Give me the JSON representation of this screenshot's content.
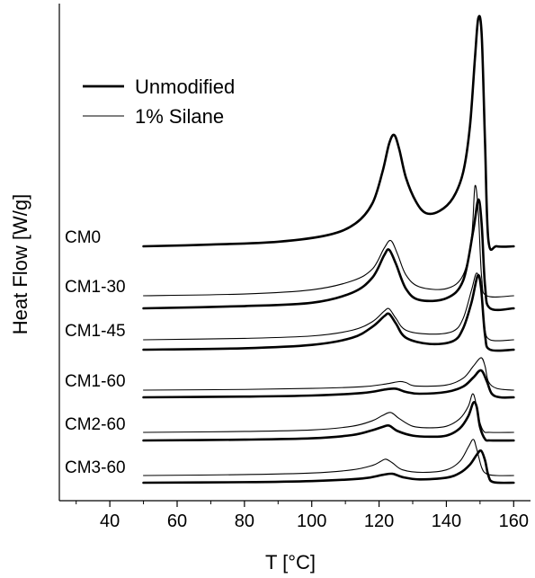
{
  "chart_data": {
    "type": "line",
    "xlabel": "T [°C]",
    "ylabel": "Heat Flow [W/g]",
    "xlim": [
      25,
      165
    ],
    "xticks": [
      40,
      60,
      80,
      100,
      120,
      140,
      160
    ],
    "y_ticks_shown": false,
    "grid": false,
    "legend": {
      "placement": "top-left",
      "entries": [
        {
          "name": "Unmodified",
          "style": "thick"
        },
        {
          "name": "1% Silane",
          "style": "thin"
        }
      ]
    },
    "samples": [
      "CM0",
      "CM1-30",
      "CM1-45",
      "CM1-60",
      "CM2-60",
      "CM3-60"
    ],
    "curves": [
      {
        "sample": "CM0",
        "series": "Unmodified",
        "points": [
          [
            50,
            0.0
          ],
          [
            70,
            0.03
          ],
          [
            90,
            0.08
          ],
          [
            105,
            0.2
          ],
          [
            113,
            0.4
          ],
          [
            118,
            0.75
          ],
          [
            121,
            1.3
          ],
          [
            123,
            1.8
          ],
          [
            124.5,
            1.95
          ],
          [
            126,
            1.7
          ],
          [
            128,
            1.2
          ],
          [
            131,
            0.78
          ],
          [
            134,
            0.58
          ],
          [
            138,
            0.62
          ],
          [
            142,
            0.85
          ],
          [
            145,
            1.3
          ],
          [
            147,
            2.1
          ],
          [
            148.5,
            3.3
          ],
          [
            149.5,
            4.0
          ],
          [
            150.5,
            3.7
          ],
          [
            151.5,
            1.8
          ],
          [
            152.5,
            0.1
          ],
          [
            155,
            0.0
          ],
          [
            160,
            0.0
          ]
        ]
      },
      {
        "sample": "CM1-30",
        "series": "1% Silane",
        "points": [
          [
            50,
            0.0
          ],
          [
            80,
            0.03
          ],
          [
            100,
            0.1
          ],
          [
            112,
            0.25
          ],
          [
            118,
            0.45
          ],
          [
            121.5,
            0.8
          ],
          [
            123.5,
            0.93
          ],
          [
            125.5,
            0.7
          ],
          [
            128,
            0.35
          ],
          [
            132,
            0.15
          ],
          [
            140,
            0.12
          ],
          [
            145,
            0.35
          ],
          [
            147.5,
            1.0
          ],
          [
            148.5,
            1.85
          ],
          [
            149.5,
            1.4
          ],
          [
            150.5,
            0.3
          ],
          [
            152,
            0.0
          ],
          [
            160,
            0.0
          ]
        ]
      },
      {
        "sample": "CM1-30",
        "series": "Unmodified",
        "points": [
          [
            50,
            0.0
          ],
          [
            80,
            0.04
          ],
          [
            100,
            0.1
          ],
          [
            112,
            0.28
          ],
          [
            118,
            0.55
          ],
          [
            121.5,
            0.95
          ],
          [
            123,
            1.05
          ],
          [
            125,
            0.8
          ],
          [
            128,
            0.35
          ],
          [
            132,
            0.15
          ],
          [
            140,
            0.18
          ],
          [
            145,
            0.5
          ],
          [
            148,
            1.4
          ],
          [
            149.5,
            1.95
          ],
          [
            150.5,
            1.5
          ],
          [
            151.5,
            0.4
          ],
          [
            153,
            0.0
          ],
          [
            160,
            0.0
          ]
        ]
      },
      {
        "sample": "CM1-45",
        "series": "1% Silane",
        "points": [
          [
            50,
            0.0
          ],
          [
            80,
            0.03
          ],
          [
            100,
            0.08
          ],
          [
            112,
            0.2
          ],
          [
            118,
            0.38
          ],
          [
            121.5,
            0.6
          ],
          [
            123,
            0.65
          ],
          [
            125,
            0.45
          ],
          [
            128,
            0.2
          ],
          [
            135,
            0.12
          ],
          [
            142,
            0.18
          ],
          [
            145,
            0.45
          ],
          [
            147.5,
            1.05
          ],
          [
            149,
            1.4
          ],
          [
            150.3,
            1.1
          ],
          [
            151.3,
            0.3
          ],
          [
            153,
            0.0
          ],
          [
            160,
            0.0
          ]
        ]
      },
      {
        "sample": "CM1-45",
        "series": "Unmodified",
        "points": [
          [
            50,
            0.0
          ],
          [
            80,
            0.03
          ],
          [
            100,
            0.1
          ],
          [
            112,
            0.25
          ],
          [
            118,
            0.48
          ],
          [
            121.5,
            0.7
          ],
          [
            123,
            0.75
          ],
          [
            125,
            0.55
          ],
          [
            128,
            0.25
          ],
          [
            135,
            0.12
          ],
          [
            142,
            0.18
          ],
          [
            145,
            0.45
          ],
          [
            147.5,
            1.0
          ],
          [
            149.3,
            1.55
          ],
          [
            150.3,
            1.3
          ],
          [
            151.5,
            0.3
          ],
          [
            153,
            0.0
          ],
          [
            160,
            0.0
          ]
        ]
      },
      {
        "sample": "CM1-60",
        "series": "1% Silane",
        "points": [
          [
            50,
            0.0
          ],
          [
            80,
            0.02
          ],
          [
            100,
            0.05
          ],
          [
            115,
            0.1
          ],
          [
            122,
            0.18
          ],
          [
            126,
            0.25
          ],
          [
            128,
            0.22
          ],
          [
            131,
            0.12
          ],
          [
            140,
            0.15
          ],
          [
            145,
            0.35
          ],
          [
            148,
            0.7
          ],
          [
            150.3,
            0.95
          ],
          [
            151.5,
            0.7
          ],
          [
            152.5,
            0.25
          ],
          [
            155,
            0.05
          ],
          [
            160,
            0.0
          ]
        ]
      },
      {
        "sample": "CM1-60",
        "series": "Unmodified",
        "points": [
          [
            50,
            0.0
          ],
          [
            80,
            0.02
          ],
          [
            100,
            0.05
          ],
          [
            115,
            0.12
          ],
          [
            122,
            0.22
          ],
          [
            125,
            0.24
          ],
          [
            128,
            0.15
          ],
          [
            132,
            0.1
          ],
          [
            140,
            0.15
          ],
          [
            145,
            0.3
          ],
          [
            148,
            0.55
          ],
          [
            150.3,
            0.75
          ],
          [
            152,
            0.45
          ],
          [
            153.5,
            0.1
          ],
          [
            156,
            0.0
          ],
          [
            160,
            0.0
          ]
        ]
      },
      {
        "sample": "CM2-60",
        "series": "1% Silane",
        "points": [
          [
            50,
            0.0
          ],
          [
            80,
            0.03
          ],
          [
            100,
            0.08
          ],
          [
            112,
            0.2
          ],
          [
            118,
            0.38
          ],
          [
            121,
            0.55
          ],
          [
            123.5,
            0.65
          ],
          [
            126,
            0.45
          ],
          [
            130,
            0.2
          ],
          [
            135,
            0.15
          ],
          [
            140,
            0.2
          ],
          [
            144,
            0.45
          ],
          [
            146.5,
            0.85
          ],
          [
            147.7,
            1.25
          ],
          [
            148.5,
            1.1
          ],
          [
            149.5,
            0.5
          ],
          [
            151,
            0.05
          ],
          [
            153,
            0.0
          ],
          [
            160,
            0.0
          ]
        ]
      },
      {
        "sample": "CM2-60",
        "series": "Unmodified",
        "points": [
          [
            50,
            0.0
          ],
          [
            80,
            0.03
          ],
          [
            100,
            0.08
          ],
          [
            112,
            0.2
          ],
          [
            118,
            0.38
          ],
          [
            121,
            0.5
          ],
          [
            123,
            0.55
          ],
          [
            125.5,
            0.35
          ],
          [
            130,
            0.18
          ],
          [
            135,
            0.14
          ],
          [
            140,
            0.18
          ],
          [
            144,
            0.45
          ],
          [
            146.5,
            0.9
          ],
          [
            148,
            1.4
          ],
          [
            149,
            1.25
          ],
          [
            150,
            0.5
          ],
          [
            151.5,
            0.05
          ],
          [
            153,
            0.0
          ],
          [
            160,
            0.0
          ]
        ]
      },
      {
        "sample": "CM3-60",
        "series": "1% Silane",
        "points": [
          [
            50,
            0.0
          ],
          [
            80,
            0.03
          ],
          [
            100,
            0.08
          ],
          [
            112,
            0.18
          ],
          [
            118,
            0.32
          ],
          [
            120.5,
            0.45
          ],
          [
            122,
            0.52
          ],
          [
            124,
            0.4
          ],
          [
            127,
            0.18
          ],
          [
            133,
            0.1
          ],
          [
            140,
            0.18
          ],
          [
            144,
            0.45
          ],
          [
            146.5,
            0.9
          ],
          [
            148,
            1.15
          ],
          [
            149,
            0.85
          ],
          [
            150.5,
            0.25
          ],
          [
            152,
            0.05
          ],
          [
            155,
            0.0
          ],
          [
            160,
            0.0
          ]
        ]
      },
      {
        "sample": "CM3-60",
        "series": "Unmodified",
        "points": [
          [
            50,
            0.0
          ],
          [
            80,
            0.02
          ],
          [
            100,
            0.06
          ],
          [
            115,
            0.15
          ],
          [
            121,
            0.28
          ],
          [
            124,
            0.32
          ],
          [
            127,
            0.2
          ],
          [
            132,
            0.12
          ],
          [
            140,
            0.18
          ],
          [
            144,
            0.35
          ],
          [
            147,
            0.65
          ],
          [
            149,
            1.0
          ],
          [
            150.3,
            1.15
          ],
          [
            151.5,
            0.8
          ],
          [
            152.5,
            0.25
          ],
          [
            154,
            0.02
          ],
          [
            160,
            0.0
          ]
        ]
      }
    ]
  }
}
